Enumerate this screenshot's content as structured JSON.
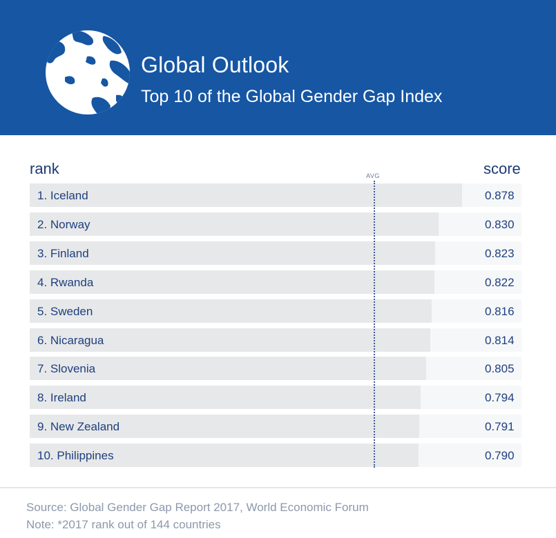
{
  "header": {
    "title": "Global Outlook",
    "subtitle": "Top 10 of the Global Gender Gap Index",
    "background_color": "#1656a3",
    "icon": "globe-icon"
  },
  "columns": {
    "rank_label": "rank",
    "score_label": "score",
    "avg_label": "AVG"
  },
  "chart_data": {
    "type": "bar",
    "orientation": "horizontal",
    "categories": [
      "1. Iceland",
      "2. Norway",
      "3. Finland",
      "4. Rwanda",
      "5. Sweden",
      "6. Nicaragua",
      "7. Slovenia",
      "8. Ireland",
      "9. New Zealand",
      "10. Philippines"
    ],
    "values": [
      0.878,
      0.83,
      0.823,
      0.822,
      0.816,
      0.814,
      0.805,
      0.794,
      0.791,
      0.79
    ],
    "value_labels": [
      "0.878",
      "0.830",
      "0.823",
      "0.822",
      "0.816",
      "0.814",
      "0.805",
      "0.794",
      "0.791",
      "0.790"
    ],
    "bar_color": "#e7e8e9",
    "track_color": "#f6f7f8",
    "text_color": "#1e3f7f",
    "avg_marker_color": "#3d5b9a"
  },
  "footer": {
    "source": "Source: Global Gender Gap Report 2017, World Economic Forum",
    "note": "Note: *2017 rank out of 144 countries"
  }
}
